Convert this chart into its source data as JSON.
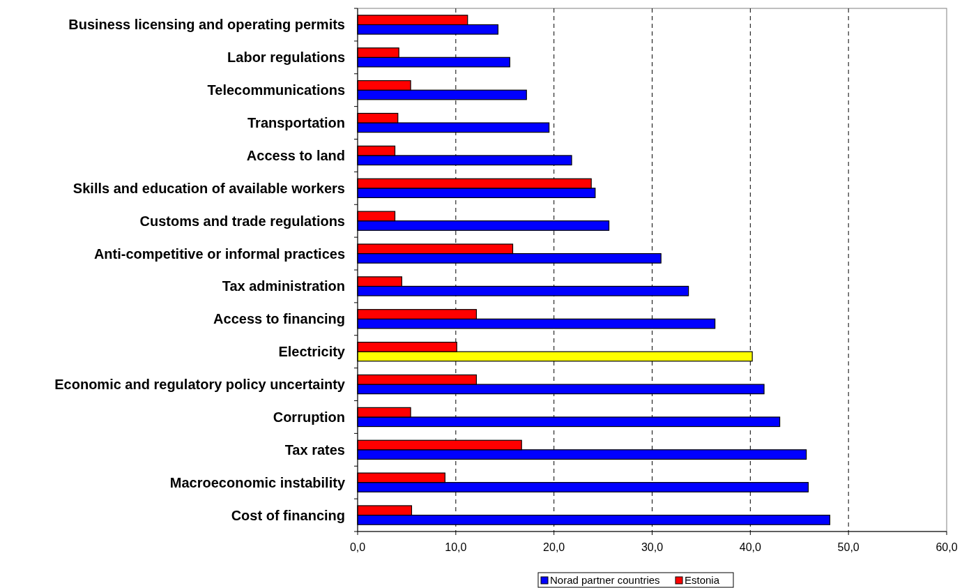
{
  "chart_data": {
    "type": "bar",
    "orientation": "horizontal",
    "categories": [
      "Business licensing and operating permits",
      "Labor regulations",
      "Telecommunications",
      "Transportation",
      "Access to land",
      "Skills and education of available workers",
      "Customs and trade regulations",
      "Anti-competitive or informal practices",
      "Tax administration",
      "Access to financing",
      "Electricity",
      "Economic and regulatory policy uncertainty",
      "Corruption",
      "Tax rates",
      "Macroeconomic instability",
      "Cost of financing"
    ],
    "series": [
      {
        "name": "Norad partner countries",
        "color": "#0000ff",
        "colors": [
          "#0000ff",
          "#0000ff",
          "#0000ff",
          "#0000ff",
          "#0000ff",
          "#0000ff",
          "#0000ff",
          "#0000ff",
          "#0000ff",
          "#0000ff",
          "#ffff00",
          "#0000ff",
          "#0000ff",
          "#0000ff",
          "#0000ff",
          "#0000ff"
        ],
        "values": [
          14.3,
          15.5,
          17.2,
          19.5,
          21.8,
          24.2,
          25.6,
          30.9,
          33.7,
          36.4,
          40.2,
          41.4,
          43.0,
          45.7,
          45.9,
          48.1
        ]
      },
      {
        "name": "Estonia",
        "color": "#ff0000",
        "values": [
          11.2,
          4.2,
          5.4,
          4.1,
          3.8,
          23.8,
          3.8,
          15.8,
          4.5,
          12.1,
          10.1,
          12.1,
          5.4,
          16.7,
          8.9,
          5.5
        ]
      }
    ],
    "xlim": [
      0,
      60
    ],
    "xticks": [
      {
        "value": 0,
        "label": "0,0"
      },
      {
        "value": 10,
        "label": "10,0"
      },
      {
        "value": 20,
        "label": "20,0"
      },
      {
        "value": 30,
        "label": "30,0"
      },
      {
        "value": 40,
        "label": "40,0"
      },
      {
        "value": 50,
        "label": "50,0"
      },
      {
        "value": 60,
        "label": "60,0"
      }
    ],
    "grid": "x",
    "legend": "bottom"
  }
}
